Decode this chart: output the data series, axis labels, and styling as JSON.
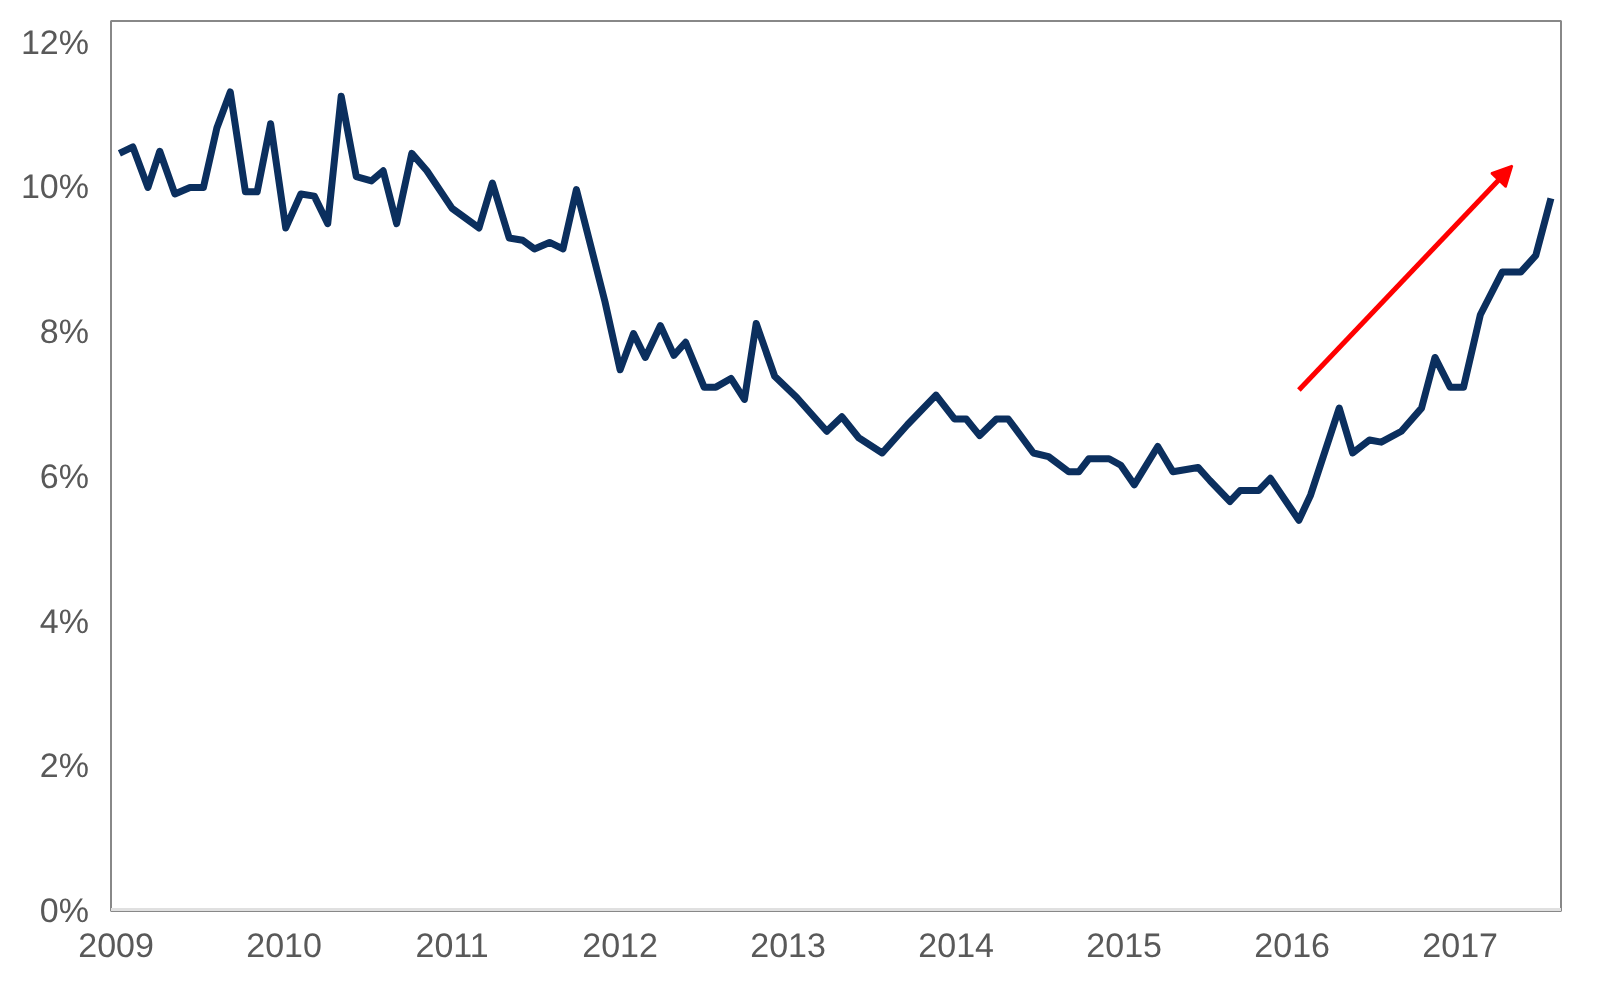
{
  "chart_data": {
    "type": "line",
    "x": [
      2009.02,
      2009.1,
      2009.19,
      2009.26,
      2009.35,
      2009.44,
      2009.52,
      2009.6,
      2009.68,
      2009.77,
      2009.84,
      2009.92,
      2010.01,
      2010.1,
      2010.18,
      2010.26,
      2010.34,
      2010.43,
      2010.52,
      2010.59,
      2010.67,
      2010.76,
      2010.85,
      2011.0,
      2011.16,
      2011.24,
      2011.34,
      2011.42,
      2011.49,
      2011.58,
      2011.66,
      2011.74,
      2011.91,
      2012.0,
      2012.08,
      2012.15,
      2012.24,
      2012.32,
      2012.39,
      2012.5,
      2012.57,
      2012.66,
      2012.74,
      2012.81,
      2012.92,
      2013.05,
      2013.23,
      2013.32,
      2013.42,
      2013.56,
      2013.71,
      2013.88,
      2013.99,
      2014.06,
      2014.14,
      2014.24,
      2014.31,
      2014.46,
      2014.55,
      2014.67,
      2014.73,
      2014.79,
      2014.91,
      2014.98,
      2015.06,
      2015.2,
      2015.29,
      2015.44,
      2015.51,
      2015.63,
      2015.69,
      2015.8,
      2015.87,
      2016.04,
      2016.11,
      2016.28,
      2016.36,
      2016.46,
      2016.53,
      2016.65,
      2016.77,
      2016.85,
      2016.94,
      2017.02,
      2017.12,
      2017.25,
      2017.36,
      2017.45,
      2017.54
    ],
    "series": [
      {
        "color": "#0b2f5e",
        "values": [
          10.47,
          10.56,
          10.0,
          10.5,
          9.91,
          10.0,
          10.0,
          10.82,
          11.32,
          9.94,
          9.94,
          10.88,
          9.44,
          9.91,
          9.88,
          9.5,
          11.26,
          10.15,
          10.09,
          10.23,
          9.5,
          10.47,
          10.23,
          9.71,
          9.44,
          10.06,
          9.3,
          9.27,
          9.15,
          9.24,
          9.15,
          9.97,
          8.42,
          7.48,
          7.98,
          7.65,
          8.09,
          7.68,
          7.86,
          7.24,
          7.24,
          7.36,
          7.07,
          8.12,
          7.39,
          7.1,
          6.63,
          6.83,
          6.54,
          6.33,
          6.72,
          7.13,
          6.8,
          6.8,
          6.57,
          6.8,
          6.8,
          6.33,
          6.28,
          6.07,
          6.07,
          6.25,
          6.25,
          6.16,
          5.89,
          6.42,
          6.07,
          6.13,
          5.95,
          5.66,
          5.81,
          5.81,
          5.98,
          5.4,
          5.75,
          6.95,
          6.33,
          6.51,
          6.48,
          6.63,
          6.95,
          7.65,
          7.24,
          7.24,
          8.24,
          8.83,
          8.83,
          9.06,
          9.85
        ]
      }
    ],
    "xlim": [
      2008.97,
      2017.6
    ],
    "xticks": [
      2009,
      2010,
      2011,
      2012,
      2013,
      2014,
      2015,
      2016,
      2017
    ],
    "ylim": [
      0,
      12.3
    ],
    "yticks": [
      {
        "value": 0,
        "label": "0%"
      },
      {
        "value": 2,
        "label": "2%"
      },
      {
        "value": 4,
        "label": "4%"
      },
      {
        "value": 6,
        "label": "6%"
      },
      {
        "value": 8,
        "label": "8%"
      },
      {
        "value": 10,
        "label": "10%"
      },
      {
        "value": 12,
        "label": "12%"
      }
    ],
    "grid": false,
    "marker": "none",
    "line_style": "solid"
  }
}
